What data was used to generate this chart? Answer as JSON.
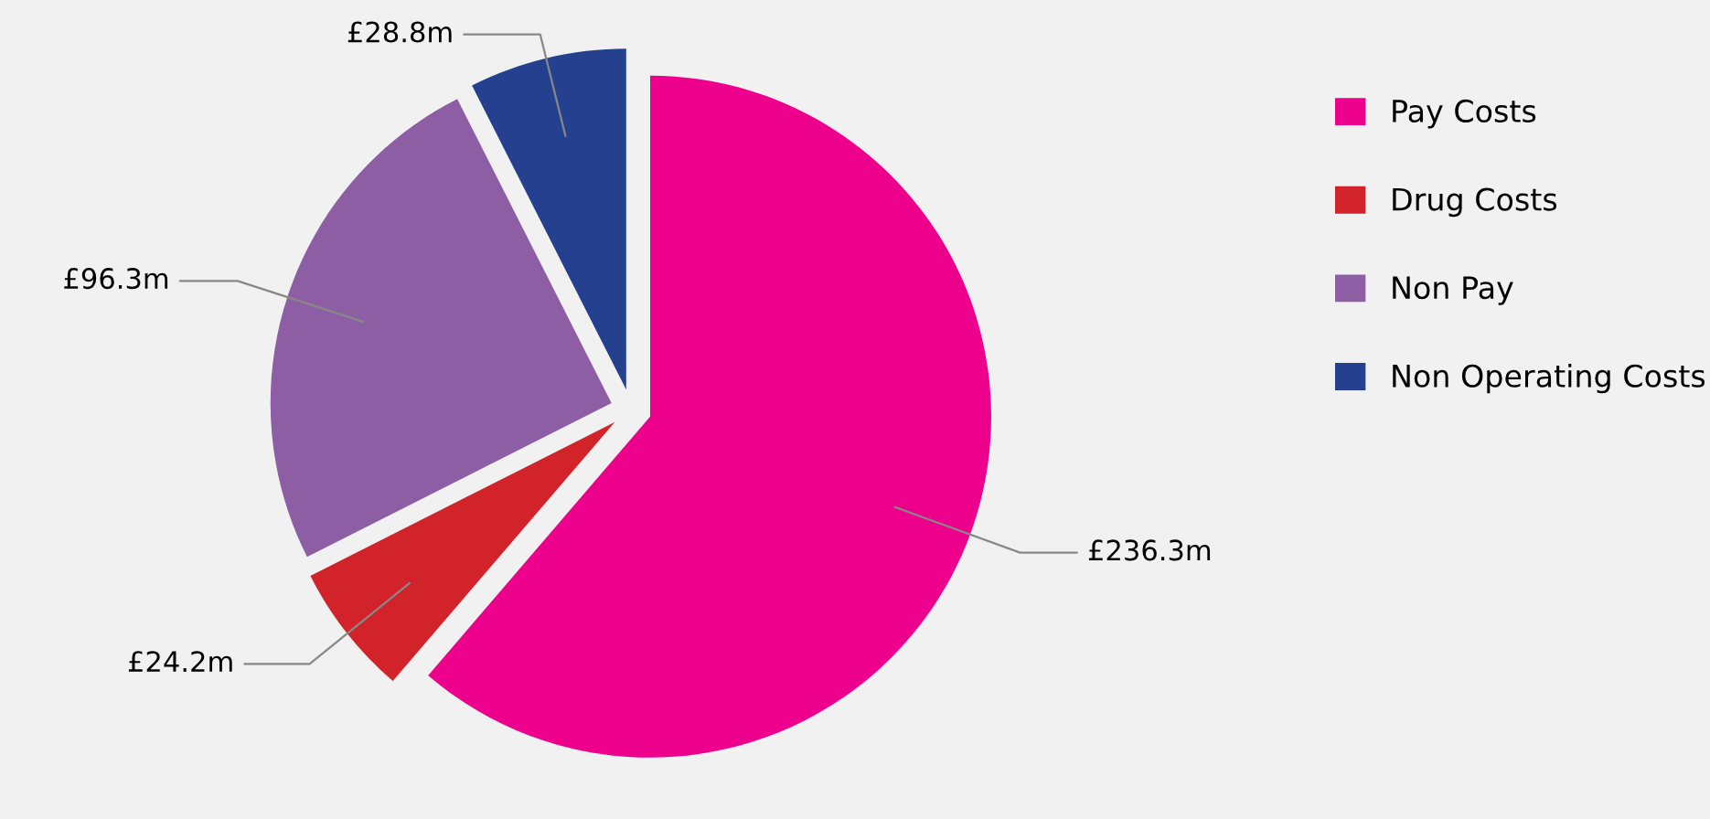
{
  "chart_data": {
    "type": "pie",
    "categories": [
      "Pay Costs",
      "Drug Costs",
      "Non Pay",
      "Non Operating Costs"
    ],
    "values": [
      236.3,
      24.2,
      96.3,
      28.8
    ],
    "colors": [
      "#ec008c",
      "#d2232a",
      "#8e5ea5",
      "#25408f"
    ],
    "value_labels": [
      "£236.3m",
      "£24.2m",
      "£96.3m",
      "£28.8m"
    ],
    "legend": "right"
  }
}
